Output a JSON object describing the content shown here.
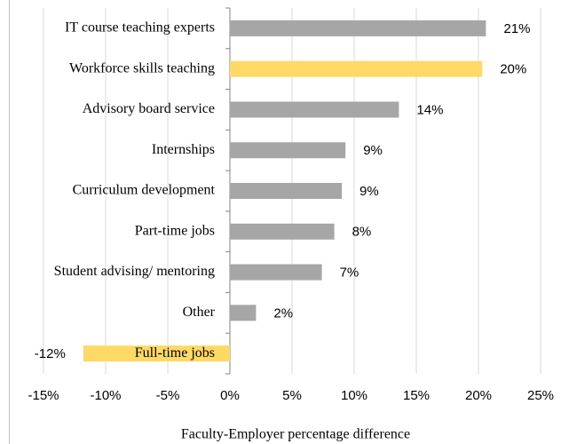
{
  "chart_data": {
    "type": "hbar",
    "x_label": "Faculty-Employer percentage difference",
    "categories": [
      "IT course teaching experts",
      "Workforce skills teaching",
      "Advisory board service",
      "Internships",
      "Curriculum development",
      "Part-time jobs",
      "Student advising/ mentoring",
      "Other",
      "Full-time jobs"
    ],
    "values": [
      20.6,
      20.3,
      13.6,
      9.3,
      9.0,
      8.4,
      7.4,
      2.1,
      -11.8
    ],
    "value_labels": [
      "21%",
      "20%",
      "14%",
      "9%",
      "9%",
      "8%",
      "7%",
      "2%",
      "-12%"
    ],
    "colors": [
      "#a6a6a6",
      "#ffd966",
      "#a6a6a6",
      "#a6a6a6",
      "#a6a6a6",
      "#a6a6a6",
      "#a6a6a6",
      "#a6a6a6",
      "#ffd966"
    ],
    "xlim": [
      -15,
      25
    ],
    "xticks": [
      {
        "value": -15,
        "label": "-15%"
      },
      {
        "value": -10,
        "label": "-10%"
      },
      {
        "value": -5,
        "label": "-5%"
      },
      {
        "value": 0,
        "label": "0%"
      },
      {
        "value": 5,
        "label": "5%"
      },
      {
        "value": 10,
        "label": "10%"
      },
      {
        "value": 15,
        "label": "15%"
      },
      {
        "value": 20,
        "label": "20%"
      },
      {
        "value": 25,
        "label": "25%"
      }
    ],
    "grid": true
  }
}
